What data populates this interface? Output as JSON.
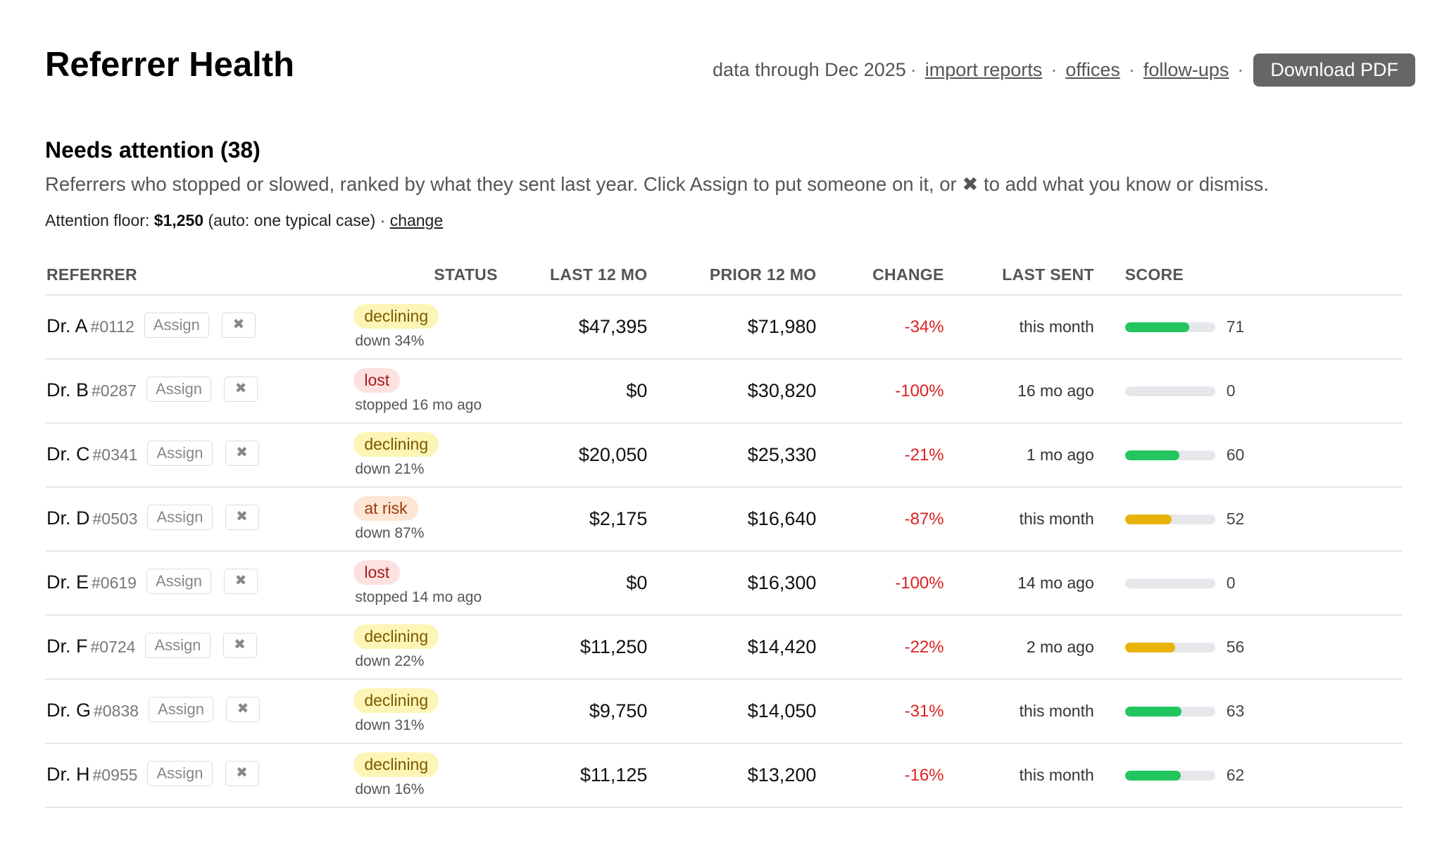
{
  "header": {
    "title": "Referrer Health",
    "data_through": "data through Dec 2025",
    "separator": "·",
    "links": [
      "import reports",
      "offices",
      "follow-ups"
    ],
    "download_label": "Download PDF"
  },
  "section": {
    "title": "Needs attention (38)",
    "description": "Referrers who stopped or slowed, ranked by what they sent last year. Click Assign to put someone on it, or ✖ to add what you know or dismiss.",
    "floor_prefix": "Attention floor:",
    "floor_value": "$1,250",
    "floor_suffix": "(auto: one typical case) ·",
    "floor_change": "change"
  },
  "table": {
    "columns": [
      "REFERRER",
      "STATUS",
      "LAST 12 MO",
      "PRIOR 12 MO",
      "CHANGE",
      "LAST SENT",
      "SCORE"
    ],
    "assign_label": "Assign",
    "dismiss_glyph": "✖",
    "colors": {
      "green": "#22c55e",
      "yellow": "#eab308"
    },
    "rows": [
      {
        "name": "Dr. A",
        "id": "#0112",
        "status": "declining",
        "status_sub": "down 34%",
        "last12": "$47,395",
        "prior12": "$71,980",
        "change": "-34%",
        "last_sent": "this month",
        "score": 71,
        "score_color": "#22c55e"
      },
      {
        "name": "Dr. B",
        "id": "#0287",
        "status": "lost",
        "status_sub": "stopped 16 mo ago",
        "last12": "$0",
        "prior12": "$30,820",
        "change": "-100%",
        "last_sent": "16 mo ago",
        "score": 0,
        "score_color": "#22c55e"
      },
      {
        "name": "Dr. C",
        "id": "#0341",
        "status": "declining",
        "status_sub": "down 21%",
        "last12": "$20,050",
        "prior12": "$25,330",
        "change": "-21%",
        "last_sent": "1 mo ago",
        "score": 60,
        "score_color": "#22c55e"
      },
      {
        "name": "Dr. D",
        "id": "#0503",
        "status": "at risk",
        "status_sub": "down 87%",
        "last12": "$2,175",
        "prior12": "$16,640",
        "change": "-87%",
        "last_sent": "this month",
        "score": 52,
        "score_color": "#eab308"
      },
      {
        "name": "Dr. E",
        "id": "#0619",
        "status": "lost",
        "status_sub": "stopped 14 mo ago",
        "last12": "$0",
        "prior12": "$16,300",
        "change": "-100%",
        "last_sent": "14 mo ago",
        "score": 0,
        "score_color": "#22c55e"
      },
      {
        "name": "Dr. F",
        "id": "#0724",
        "status": "declining",
        "status_sub": "down 22%",
        "last12": "$11,250",
        "prior12": "$14,420",
        "change": "-22%",
        "last_sent": "2 mo ago",
        "score": 56,
        "score_color": "#eab308"
      },
      {
        "name": "Dr. G",
        "id": "#0838",
        "status": "declining",
        "status_sub": "down 31%",
        "last12": "$9,750",
        "prior12": "$14,050",
        "change": "-31%",
        "last_sent": "this month",
        "score": 63,
        "score_color": "#22c55e"
      },
      {
        "name": "Dr. H",
        "id": "#0955",
        "status": "declining",
        "status_sub": "down 16%",
        "last12": "$11,125",
        "prior12": "$13,200",
        "change": "-16%",
        "last_sent": "this month",
        "score": 62,
        "score_color": "#22c55e"
      }
    ]
  }
}
